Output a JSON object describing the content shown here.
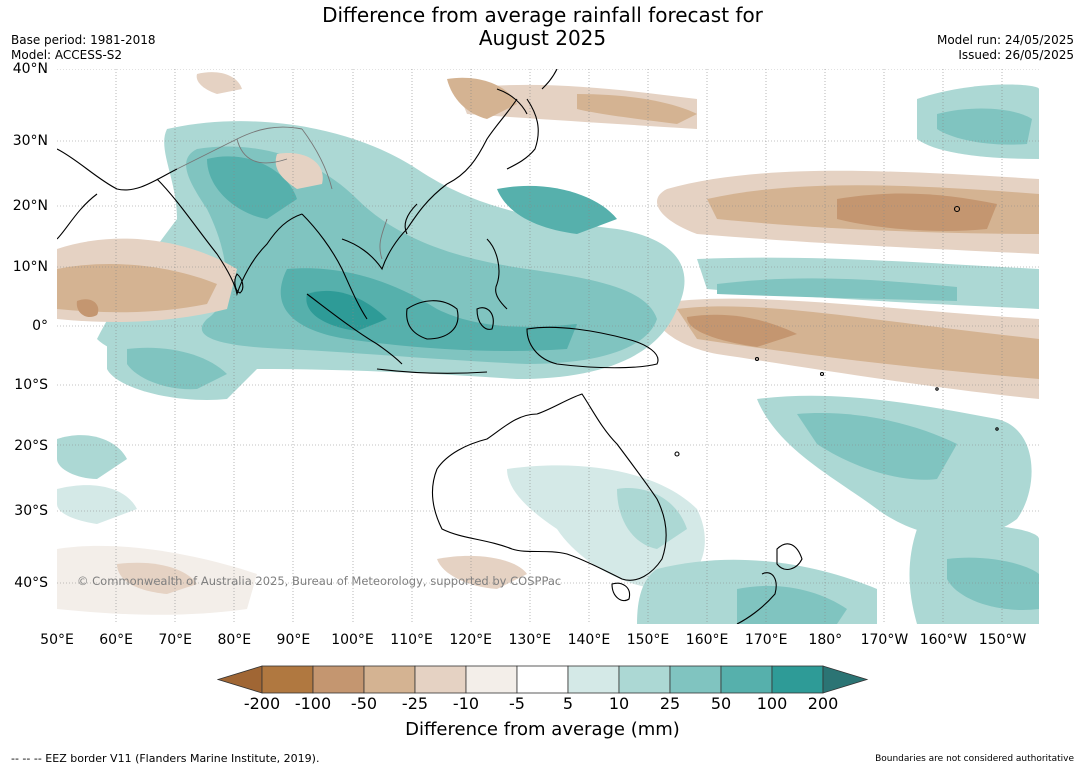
{
  "header": {
    "title_line1": "Difference from average rainfall forecast for",
    "title_line2": "August 2025",
    "base_period": "Base period: 1981-2018",
    "model": "Model: ACCESS-S2",
    "model_run": "Model run: 24/05/2025",
    "issued": "Issued: 26/05/2025"
  },
  "map": {
    "copyright": "© Commonwealth of Australia 2025, Bureau of Meteorology, supported by COSPPac",
    "lat_labels": [
      "40°N",
      "30°N",
      "20°N",
      "10°N",
      "0°",
      "10°S",
      "20°S",
      "30°S",
      "40°S"
    ],
    "lon_labels": [
      "50°E",
      "60°E",
      "70°E",
      "80°E",
      "90°E",
      "100°E",
      "110°E",
      "120°E",
      "130°E",
      "140°E",
      "150°E",
      "160°E",
      "170°E",
      "180°",
      "170°W",
      "160°W",
      "150°W"
    ]
  },
  "colorbar": {
    "title": "Difference from average (mm)",
    "tick_labels": [
      "-200",
      "-100",
      "-50",
      "-25",
      "-10",
      "-5",
      "5",
      "10",
      "25",
      "50",
      "100",
      "200"
    ],
    "colors": [
      "#a06634",
      "#b07840",
      "#c49670",
      "#d4b392",
      "#e5d2c3",
      "#f3eee9",
      "#ffffff",
      "#d4e9e7",
      "#acd8d4",
      "#80c4c0",
      "#56b0ac",
      "#2e9b97",
      "#2b7474"
    ]
  },
  "footer": {
    "eez_note": "--  --  -- EEZ border V11 (Flanders Marine Institute, 2019).",
    "boundaries_note": "Boundaries are not considered authoritative"
  }
}
